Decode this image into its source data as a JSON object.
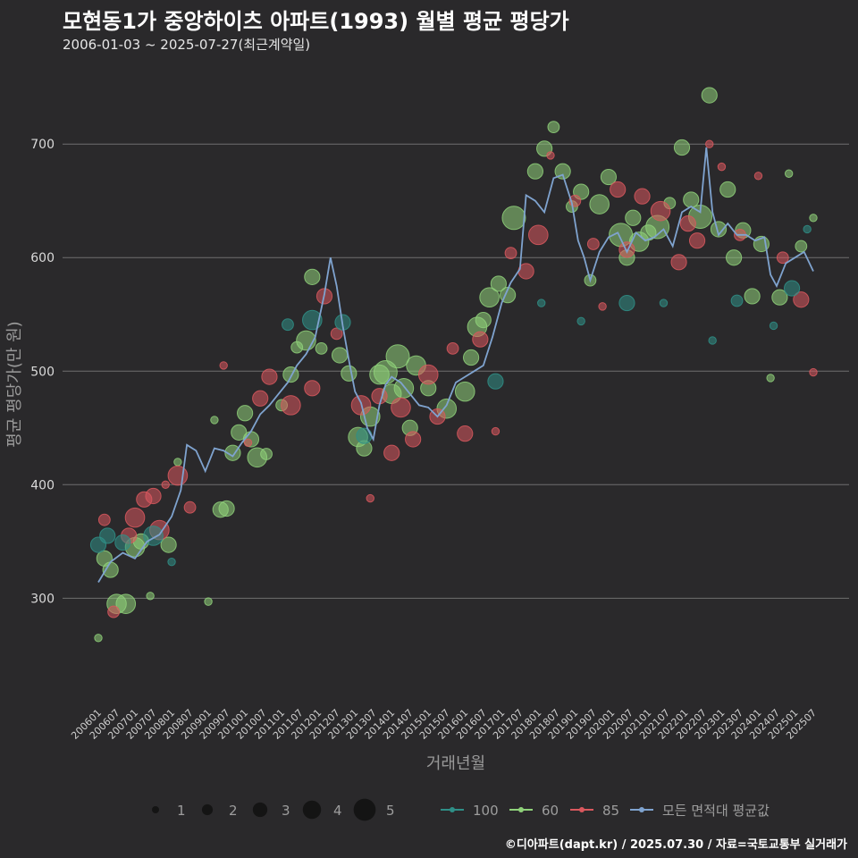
{
  "title": "모현동1가 중앙하이츠 아파트(1993) 월별 평균 평당가",
  "subtitle": "2006-01-03 ~ 2025-07-27(최근계약일)",
  "caption": "©디아파트(dapt.kr) / 2025.07.30 / 자료=국토교통부 실거래가",
  "colors": {
    "background": "#2a292b",
    "grid": "#6f6f6f",
    "series_100": "#2f8f87",
    "series_60": "#8fd17a",
    "series_85": "#d9585e",
    "series_avg": "#7fa3cf"
  },
  "chart_data": {
    "type": "scatter",
    "xlabel": "거래년월",
    "ylabel": "평균 평당가(만 원)",
    "ylim": [
      205,
      760
    ],
    "y_ticks": [
      300,
      400,
      500,
      600,
      700
    ],
    "x_tick_labels": [
      "200601",
      "200607",
      "200701",
      "200707",
      "200801",
      "200807",
      "200901",
      "200907",
      "201001",
      "201007",
      "201101",
      "201107",
      "201201",
      "201207",
      "201301",
      "201307",
      "201401",
      "201407",
      "201501",
      "201507",
      "201601",
      "201607",
      "201701",
      "201707",
      "201801",
      "201807",
      "201901",
      "201907",
      "202001",
      "202007",
      "202101",
      "202107",
      "202201",
      "202207",
      "202301",
      "202307",
      "202401",
      "202407",
      "202501",
      "202507"
    ],
    "grid": true,
    "legend_position": "bottom",
    "size_legend": {
      "values": [
        1,
        2,
        3,
        4,
        5
      ],
      "labels": [
        "1",
        "2",
        "3",
        "4",
        "5"
      ]
    },
    "series_legend": [
      "100",
      "60",
      "85",
      "모든 면적대 평균값"
    ],
    "series": [
      {
        "name": "60",
        "color": "#8fd17a",
        "points": [
          [
            "2006-01",
            265,
            1
          ],
          [
            "2006-03",
            335,
            3
          ],
          [
            "2006-05",
            325,
            3
          ],
          [
            "2006-07",
            295,
            4
          ],
          [
            "2006-10",
            295,
            4
          ],
          [
            "2007-01",
            345,
            4
          ],
          [
            "2007-03",
            350,
            3
          ],
          [
            "2007-06",
            302,
            1
          ],
          [
            "2007-12",
            347,
            3
          ],
          [
            "2008-03",
            420,
            1
          ],
          [
            "2009-01",
            297,
            1
          ],
          [
            "2009-03",
            457,
            1
          ],
          [
            "2009-05",
            378,
            3
          ],
          [
            "2009-07",
            379,
            3
          ],
          [
            "2009-09",
            428,
            3
          ],
          [
            "2009-11",
            446,
            3
          ],
          [
            "2010-01",
            463,
            3
          ],
          [
            "2010-03",
            440,
            3
          ],
          [
            "2010-05",
            424,
            4
          ],
          [
            "2010-08",
            427,
            2
          ],
          [
            "2011-01",
            470,
            2
          ],
          [
            "2011-04",
            497,
            3
          ],
          [
            "2011-06",
            521,
            2
          ],
          [
            "2011-09",
            527,
            4
          ],
          [
            "2011-11",
            583,
            3
          ],
          [
            "2012-02",
            520,
            2
          ],
          [
            "2012-08",
            514,
            3
          ],
          [
            "2012-11",
            498,
            3
          ],
          [
            "2013-02",
            442,
            4
          ],
          [
            "2013-04",
            432,
            3
          ],
          [
            "2013-06",
            460,
            4
          ],
          [
            "2013-09",
            497,
            4
          ],
          [
            "2013-11",
            499,
            5
          ],
          [
            "2014-01",
            480,
            4
          ],
          [
            "2014-03",
            513,
            5
          ],
          [
            "2014-05",
            485,
            4
          ],
          [
            "2014-07",
            450,
            3
          ],
          [
            "2014-09",
            505,
            4
          ],
          [
            "2015-01",
            485,
            3
          ],
          [
            "2015-07",
            467,
            4
          ],
          [
            "2016-01",
            482,
            4
          ],
          [
            "2016-03",
            512,
            3
          ],
          [
            "2016-05",
            539,
            4
          ],
          [
            "2016-07",
            545,
            3
          ],
          [
            "2016-09",
            565,
            4
          ],
          [
            "2016-12",
            577,
            3
          ],
          [
            "2017-03",
            567,
            3
          ],
          [
            "2017-05",
            635,
            5
          ],
          [
            "2017-12",
            676,
            3
          ],
          [
            "2018-03",
            696,
            3
          ],
          [
            "2018-06",
            715,
            2
          ],
          [
            "2018-09",
            676,
            3
          ],
          [
            "2018-12",
            645,
            2
          ],
          [
            "2019-03",
            658,
            3
          ],
          [
            "2019-06",
            580,
            2
          ],
          [
            "2019-09",
            647,
            4
          ],
          [
            "2019-12",
            671,
            3
          ],
          [
            "2020-04",
            620,
            5
          ],
          [
            "2020-06",
            600,
            3
          ],
          [
            "2020-08",
            635,
            3
          ],
          [
            "2020-10",
            614,
            4
          ],
          [
            "2021-01",
            622,
            3
          ],
          [
            "2021-04",
            627,
            5
          ],
          [
            "2021-08",
            648,
            2
          ],
          [
            "2021-12",
            697,
            3
          ],
          [
            "2022-03",
            651,
            3
          ],
          [
            "2022-06",
            636,
            5
          ],
          [
            "2022-09",
            743,
            3
          ],
          [
            "2022-12",
            625,
            3
          ],
          [
            "2023-03",
            660,
            3
          ],
          [
            "2023-05",
            600,
            3
          ],
          [
            "2023-08",
            624,
            3
          ],
          [
            "2023-11",
            566,
            3
          ],
          [
            "2024-02",
            612,
            3
          ],
          [
            "2024-05",
            494,
            1
          ],
          [
            "2024-08",
            565,
            3
          ],
          [
            "2024-11",
            674,
            1
          ],
          [
            "2025-03",
            610,
            2
          ],
          [
            "2025-07",
            635,
            1
          ]
        ]
      },
      {
        "name": "85",
        "color": "#d9585e",
        "points": [
          [
            "2006-03",
            369,
            2
          ],
          [
            "2006-06",
            288,
            2
          ],
          [
            "2006-11",
            355,
            3
          ],
          [
            "2007-01",
            371,
            4
          ],
          [
            "2007-04",
            387,
            3
          ],
          [
            "2007-07",
            390,
            3
          ],
          [
            "2007-09",
            360,
            4
          ],
          [
            "2007-11",
            400,
            1
          ],
          [
            "2008-03",
            408,
            4
          ],
          [
            "2008-07",
            380,
            2
          ],
          [
            "2009-06",
            505,
            1
          ],
          [
            "2010-02",
            437,
            1
          ],
          [
            "2010-06",
            476,
            3
          ],
          [
            "2010-09",
            495,
            3
          ],
          [
            "2011-04",
            470,
            4
          ],
          [
            "2011-11",
            485,
            3
          ],
          [
            "2012-03",
            566,
            3
          ],
          [
            "2012-07",
            533,
            2
          ],
          [
            "2013-03",
            470,
            4
          ],
          [
            "2013-06",
            388,
            1
          ],
          [
            "2013-09",
            478,
            3
          ],
          [
            "2014-01",
            428,
            3
          ],
          [
            "2014-04",
            468,
            4
          ],
          [
            "2014-08",
            440,
            3
          ],
          [
            "2015-01",
            497,
            4
          ],
          [
            "2015-04",
            460,
            3
          ],
          [
            "2015-09",
            520,
            2
          ],
          [
            "2016-01",
            445,
            3
          ],
          [
            "2016-06",
            528,
            3
          ],
          [
            "2016-11",
            447,
            1
          ],
          [
            "2017-04",
            604,
            2
          ],
          [
            "2017-09",
            588,
            3
          ],
          [
            "2018-01",
            620,
            4
          ],
          [
            "2018-05",
            690,
            1
          ],
          [
            "2019-01",
            650,
            2
          ],
          [
            "2019-07",
            612,
            2
          ],
          [
            "2019-10",
            557,
            1
          ],
          [
            "2020-03",
            660,
            3
          ],
          [
            "2020-06",
            607,
            3
          ],
          [
            "2020-11",
            654,
            3
          ],
          [
            "2021-05",
            641,
            4
          ],
          [
            "2021-11",
            596,
            3
          ],
          [
            "2022-02",
            630,
            3
          ],
          [
            "2022-05",
            615,
            3
          ],
          [
            "2022-09",
            700,
            1
          ],
          [
            "2023-01",
            680,
            1
          ],
          [
            "2023-07",
            620,
            2
          ],
          [
            "2024-01",
            672,
            1
          ],
          [
            "2024-09",
            600,
            2
          ],
          [
            "2025-03",
            563,
            3
          ],
          [
            "2025-07",
            499,
            1
          ]
        ]
      },
      {
        "name": "100",
        "color": "#2f8f87",
        "points": [
          [
            "2006-01",
            347,
            3
          ],
          [
            "2006-04",
            355,
            3
          ],
          [
            "2006-09",
            349,
            3
          ],
          [
            "2007-07",
            355,
            4
          ],
          [
            "2008-01",
            332,
            1
          ],
          [
            "2011-03",
            541,
            2
          ],
          [
            "2011-11",
            545,
            4
          ],
          [
            "2012-09",
            543,
            3
          ],
          [
            "2013-04",
            443,
            3
          ],
          [
            "2016-11",
            491,
            3
          ],
          [
            "2018-02",
            560,
            1
          ],
          [
            "2019-03",
            544,
            1
          ],
          [
            "2020-06",
            560,
            3
          ],
          [
            "2021-06",
            560,
            1
          ],
          [
            "2022-10",
            527,
            1
          ],
          [
            "2023-06",
            562,
            2
          ],
          [
            "2024-06",
            540,
            1
          ],
          [
            "2024-12",
            573,
            3
          ],
          [
            "2025-05",
            625,
            1
          ]
        ]
      }
    ],
    "average": {
      "name": "모든 면적대 평균값",
      "color": "#7fa3cf",
      "points": [
        [
          "2006-01",
          314
        ],
        [
          "2006-05",
          332
        ],
        [
          "2006-09",
          340
        ],
        [
          "2007-01",
          335
        ],
        [
          "2007-05",
          350
        ],
        [
          "2007-09",
          356
        ],
        [
          "2008-01",
          372
        ],
        [
          "2008-04",
          395
        ],
        [
          "2008-06",
          435
        ],
        [
          "2008-09",
          430
        ],
        [
          "2008-12",
          412
        ],
        [
          "2009-03",
          432
        ],
        [
          "2009-06",
          430
        ],
        [
          "2009-09",
          425
        ],
        [
          "2009-12",
          437
        ],
        [
          "2010-03",
          447
        ],
        [
          "2010-06",
          462
        ],
        [
          "2010-09",
          470
        ],
        [
          "2010-12",
          480
        ],
        [
          "2011-03",
          490
        ],
        [
          "2011-06",
          505
        ],
        [
          "2011-09",
          515
        ],
        [
          "2011-12",
          530
        ],
        [
          "2012-03",
          568
        ],
        [
          "2012-05",
          600
        ],
        [
          "2012-07",
          575
        ],
        [
          "2012-09",
          540
        ],
        [
          "2012-11",
          510
        ],
        [
          "2013-01",
          482
        ],
        [
          "2013-03",
          472
        ],
        [
          "2013-05",
          450
        ],
        [
          "2013-07",
          440
        ],
        [
          "2013-09",
          470
        ],
        [
          "2013-11",
          488
        ],
        [
          "2014-01",
          495
        ],
        [
          "2014-04",
          490
        ],
        [
          "2014-07",
          480
        ],
        [
          "2014-10",
          470
        ],
        [
          "2015-01",
          468
        ],
        [
          "2015-04",
          460
        ],
        [
          "2015-07",
          470
        ],
        [
          "2015-10",
          490
        ],
        [
          "2016-01",
          495
        ],
        [
          "2016-04",
          500
        ],
        [
          "2016-07",
          505
        ],
        [
          "2016-10",
          530
        ],
        [
          "2017-01",
          560
        ],
        [
          "2017-04",
          578
        ],
        [
          "2017-07",
          590
        ],
        [
          "2017-09",
          655
        ],
        [
          "2017-12",
          650
        ],
        [
          "2018-03",
          640
        ],
        [
          "2018-06",
          670
        ],
        [
          "2018-09",
          673
        ],
        [
          "2018-12",
          648
        ],
        [
          "2019-02",
          615
        ],
        [
          "2019-04",
          600
        ],
        [
          "2019-06",
          580
        ],
        [
          "2019-09",
          605
        ],
        [
          "2019-12",
          618
        ],
        [
          "2020-03",
          622
        ],
        [
          "2020-06",
          605
        ],
        [
          "2020-09",
          622
        ],
        [
          "2020-12",
          615
        ],
        [
          "2021-03",
          618
        ],
        [
          "2021-06",
          625
        ],
        [
          "2021-09",
          610
        ],
        [
          "2021-12",
          640
        ],
        [
          "2022-03",
          645
        ],
        [
          "2022-06",
          640
        ],
        [
          "2022-08",
          697
        ],
        [
          "2022-10",
          640
        ],
        [
          "2022-12",
          620
        ],
        [
          "2023-03",
          630
        ],
        [
          "2023-06",
          620
        ],
        [
          "2023-09",
          620
        ],
        [
          "2023-12",
          615
        ],
        [
          "2024-03",
          618
        ],
        [
          "2024-05",
          585
        ],
        [
          "2024-07",
          575
        ],
        [
          "2024-10",
          595
        ],
        [
          "2025-01",
          600
        ],
        [
          "2025-04",
          605
        ],
        [
          "2025-07",
          588
        ]
      ]
    }
  }
}
